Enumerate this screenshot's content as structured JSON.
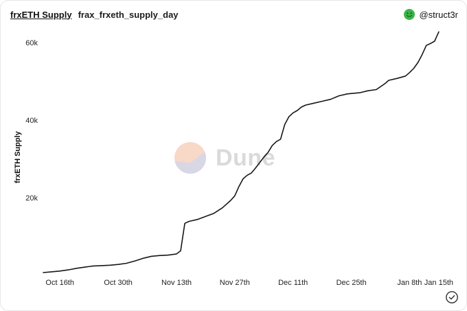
{
  "header": {
    "title": "frxETH Supply",
    "query_name": "frax_frxeth_supply_day",
    "author_handle": "@struct3r"
  },
  "watermark": {
    "text": "Dune"
  },
  "icons": {
    "author_avatar": "green-smiley-icon",
    "watermark_logo": "dune-logo-icon",
    "footer_check": "check-circle-icon"
  },
  "colors": {
    "line": "#161616",
    "title_text": "#111111",
    "tick_text": "#222222",
    "avatar_green": "#3cb44a",
    "watermark_peach": "#f8d8c6",
    "watermark_lavender": "#d8d7e6",
    "watermark_text": "#dadada",
    "card_border": "#e6e6e6"
  },
  "chart_data": {
    "type": "line",
    "title": "frxETH Supply",
    "subtitle": "frax_frxeth_supply_day",
    "xlabel": "",
    "ylabel": "frxETH Supply",
    "line_color": "#161616",
    "grid": false,
    "legend": false,
    "ylim": [
      0,
      65000
    ],
    "x_day_domain": [
      -4,
      93
    ],
    "yticks": [
      {
        "value": 20000,
        "label": "20k"
      },
      {
        "value": 40000,
        "label": "40k"
      },
      {
        "value": 60000,
        "label": "60k"
      }
    ],
    "xticks": [
      {
        "day": 0,
        "label": "Oct 16th"
      },
      {
        "day": 14,
        "label": "Oct 30th"
      },
      {
        "day": 28,
        "label": "Nov 13th"
      },
      {
        "day": 42,
        "label": "Nov 27th"
      },
      {
        "day": 56,
        "label": "Dec 11th"
      },
      {
        "day": 70,
        "label": "Dec 25th"
      },
      {
        "day": 84,
        "label": "Jan 8th"
      },
      {
        "day": 91,
        "label": "Jan 15th"
      }
    ],
    "series": [
      {
        "name": "frxETH Supply",
        "points": [
          [
            -4,
            700
          ],
          [
            -2,
            900
          ],
          [
            0,
            1100
          ],
          [
            2,
            1400
          ],
          [
            4,
            1800
          ],
          [
            6,
            2100
          ],
          [
            8,
            2400
          ],
          [
            10,
            2500
          ],
          [
            12,
            2600
          ],
          [
            14,
            2800
          ],
          [
            16,
            3100
          ],
          [
            18,
            3700
          ],
          [
            20,
            4400
          ],
          [
            22,
            4900
          ],
          [
            24,
            5100
          ],
          [
            26,
            5200
          ],
          [
            28,
            5500
          ],
          [
            29,
            6300
          ],
          [
            30,
            13400
          ],
          [
            31,
            13900
          ],
          [
            33,
            14400
          ],
          [
            35,
            15200
          ],
          [
            37,
            16000
          ],
          [
            39,
            17400
          ],
          [
            41,
            19300
          ],
          [
            42,
            20500
          ],
          [
            43,
            22900
          ],
          [
            44,
            24900
          ],
          [
            45,
            25800
          ],
          [
            46,
            26400
          ],
          [
            47,
            27700
          ],
          [
            48,
            29100
          ],
          [
            49,
            30500
          ],
          [
            50,
            31700
          ],
          [
            51,
            33500
          ],
          [
            52,
            34500
          ],
          [
            53,
            35100
          ],
          [
            54,
            38900
          ],
          [
            55,
            40900
          ],
          [
            56,
            41900
          ],
          [
            57,
            42500
          ],
          [
            58,
            43400
          ],
          [
            59,
            43900
          ],
          [
            61,
            44400
          ],
          [
            63,
            44900
          ],
          [
            65,
            45400
          ],
          [
            67,
            46300
          ],
          [
            69,
            46800
          ],
          [
            70,
            46900
          ],
          [
            72,
            47100
          ],
          [
            74,
            47600
          ],
          [
            76,
            47900
          ],
          [
            78,
            49400
          ],
          [
            79,
            50300
          ],
          [
            81,
            50800
          ],
          [
            83,
            51400
          ],
          [
            84,
            52300
          ],
          [
            85,
            53400
          ],
          [
            86,
            54900
          ],
          [
            87,
            56900
          ],
          [
            88,
            59300
          ],
          [
            89,
            59800
          ],
          [
            90,
            60400
          ],
          [
            91,
            62800
          ]
        ]
      }
    ]
  }
}
